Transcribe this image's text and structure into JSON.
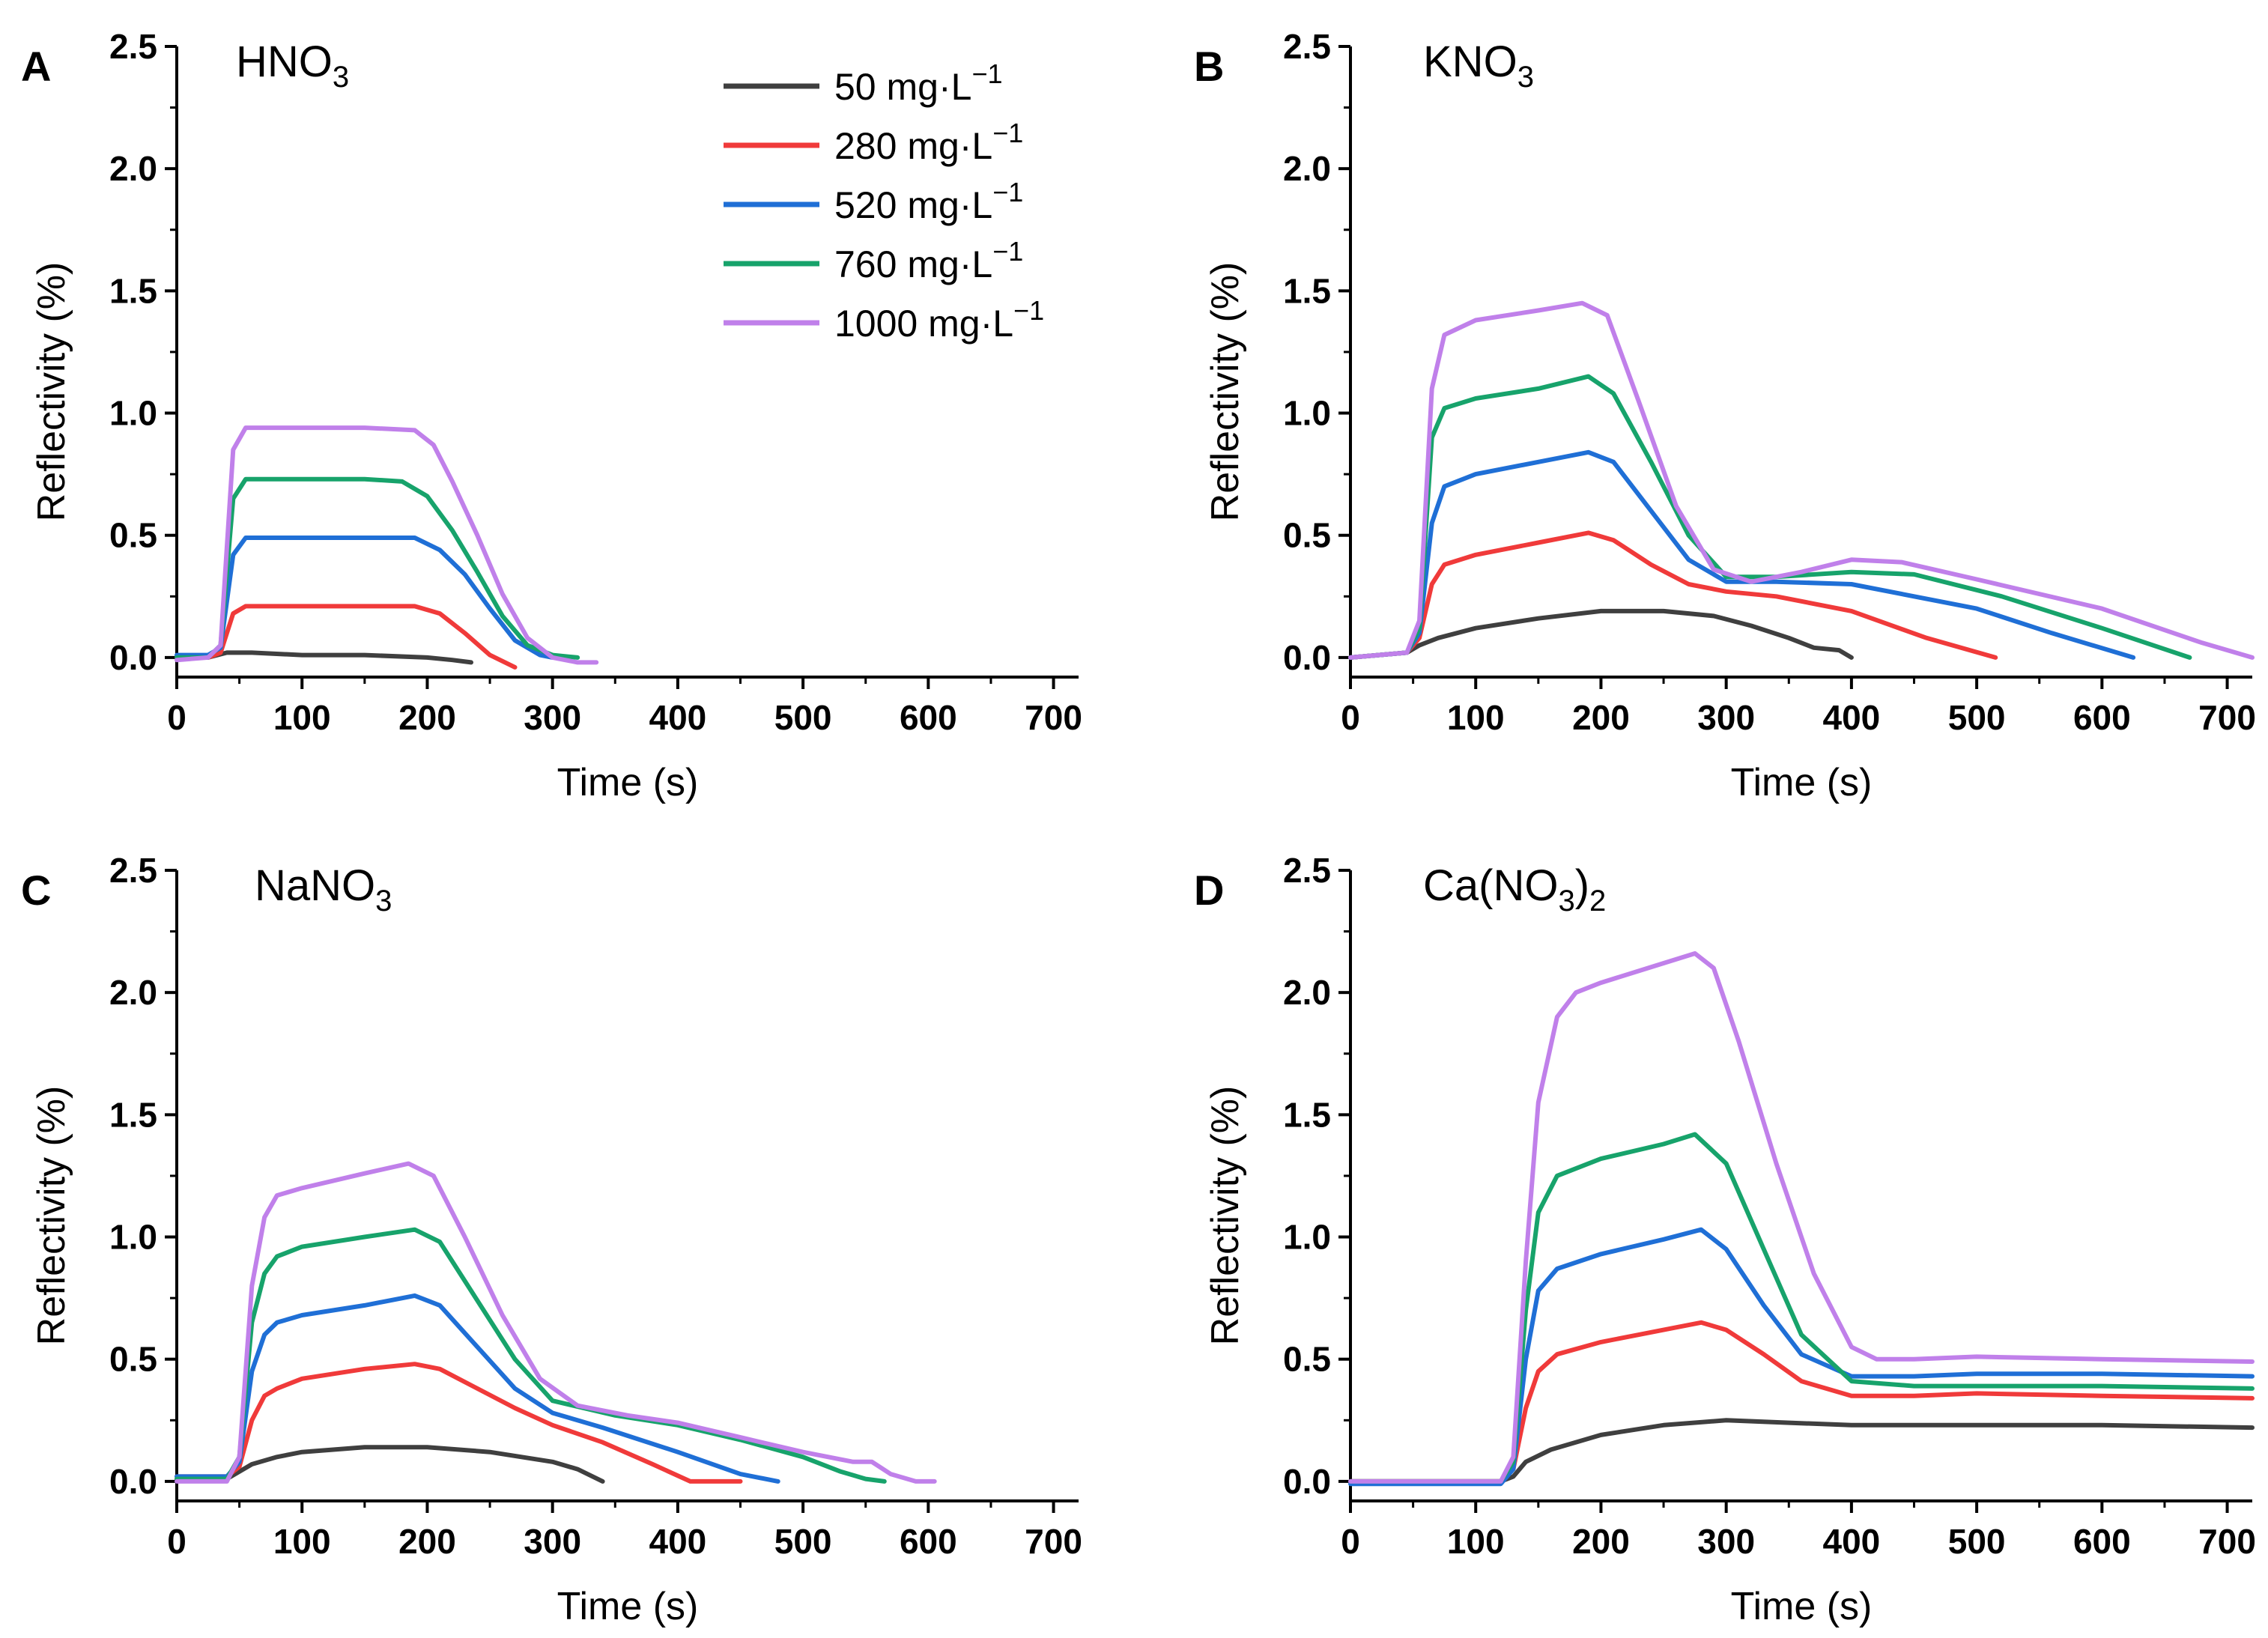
{
  "legend": {
    "entries": [
      {
        "label": "50 mg·L",
        "sup": "−1",
        "color": "#3f3f3f"
      },
      {
        "label": "280 mg·L",
        "sup": "−1",
        "color": "#f03a3a"
      },
      {
        "label": "520 mg·L",
        "sup": "−1",
        "color": "#1f6fd6"
      },
      {
        "label": "760 mg·L",
        "sup": "−1",
        "color": "#17a36b"
      },
      {
        "label": "1000 mg·L",
        "sup": "−1",
        "color": "#c080ea"
      }
    ]
  },
  "chart_data": [
    {
      "type": "line",
      "panel_label": "A",
      "title": {
        "main": "HNO",
        "sub": "3",
        "tail": ""
      },
      "xlabel": "Time (s)",
      "ylabel": "Reflectivity (%)",
      "xlim": [
        0,
        720
      ],
      "ylim": [
        -0.08,
        2.5
      ],
      "xticks": [
        "0",
        "100",
        "200",
        "300",
        "400",
        "500",
        "600",
        "700"
      ],
      "yticks": [
        "0.0",
        "0.5",
        "1.0",
        "1.5",
        "2.0",
        "2.5"
      ],
      "series": [
        {
          "name": "50 mg·L−1",
          "x": [
            0,
            25,
            40,
            60,
            100,
            150,
            200,
            220,
            235
          ],
          "y": [
            0,
            0,
            0.02,
            0.02,
            0.01,
            0.01,
            0.0,
            -0.01,
            -0.02
          ]
        },
        {
          "name": "280 mg·L−1",
          "x": [
            0,
            25,
            35,
            45,
            55,
            100,
            150,
            190,
            210,
            230,
            250,
            270
          ],
          "y": [
            0,
            0,
            0.02,
            0.18,
            0.21,
            0.21,
            0.21,
            0.21,
            0.18,
            0.1,
            0.01,
            -0.04
          ]
        },
        {
          "name": "520 mg·L−1",
          "x": [
            0,
            25,
            35,
            45,
            55,
            100,
            150,
            190,
            210,
            230,
            250,
            270,
            290,
            300
          ],
          "y": [
            0.01,
            0.01,
            0.04,
            0.42,
            0.49,
            0.49,
            0.49,
            0.49,
            0.44,
            0.34,
            0.2,
            0.07,
            0.01,
            0.0
          ]
        },
        {
          "name": "760 mg·L−1",
          "x": [
            0,
            25,
            35,
            45,
            55,
            100,
            150,
            180,
            200,
            220,
            240,
            260,
            280,
            300,
            320
          ],
          "y": [
            0,
            0,
            0.05,
            0.65,
            0.73,
            0.73,
            0.73,
            0.72,
            0.66,
            0.52,
            0.35,
            0.17,
            0.05,
            0.01,
            0.0
          ]
        },
        {
          "name": "1000 mg·L−1",
          "x": [
            0,
            25,
            35,
            45,
            55,
            100,
            150,
            190,
            205,
            220,
            240,
            260,
            280,
            300,
            320,
            335
          ],
          "y": [
            -0.01,
            0,
            0.05,
            0.85,
            0.94,
            0.94,
            0.94,
            0.93,
            0.87,
            0.72,
            0.5,
            0.26,
            0.08,
            0.0,
            -0.02,
            -0.02
          ]
        }
      ]
    },
    {
      "type": "line",
      "panel_label": "B",
      "title": {
        "main": "KNO",
        "sub": "3",
        "tail": ""
      },
      "xlabel": "Time (s)",
      "ylabel": "Reflectivity (%)",
      "xlim": [
        0,
        720
      ],
      "ylim": [
        -0.08,
        2.5
      ],
      "xticks": [
        "0",
        "100",
        "200",
        "300",
        "400",
        "500",
        "600",
        "700"
      ],
      "yticks": [
        "0.0",
        "0.5",
        "1.0",
        "1.5",
        "2.0",
        "2.5"
      ],
      "series": [
        {
          "name": "50 mg·L−1",
          "x": [
            0,
            45,
            55,
            70,
            100,
            150,
            200,
            250,
            290,
            320,
            350,
            370,
            390,
            400
          ],
          "y": [
            0,
            0.02,
            0.05,
            0.08,
            0.12,
            0.16,
            0.19,
            0.19,
            0.17,
            0.13,
            0.08,
            0.04,
            0.03,
            0.0
          ]
        },
        {
          "name": "280 mg·L−1",
          "x": [
            0,
            45,
            55,
            65,
            75,
            100,
            150,
            190,
            210,
            240,
            270,
            300,
            340,
            400,
            460,
            515
          ],
          "y": [
            0,
            0.02,
            0.08,
            0.3,
            0.38,
            0.42,
            0.47,
            0.51,
            0.48,
            0.38,
            0.3,
            0.27,
            0.25,
            0.19,
            0.08,
            0.0
          ]
        },
        {
          "name": "520 mg·L−1",
          "x": [
            0,
            45,
            55,
            65,
            75,
            100,
            150,
            190,
            210,
            240,
            270,
            300,
            340,
            400,
            500,
            560,
            625
          ],
          "y": [
            0,
            0.02,
            0.1,
            0.55,
            0.7,
            0.75,
            0.8,
            0.84,
            0.8,
            0.6,
            0.4,
            0.31,
            0.31,
            0.3,
            0.2,
            0.1,
            0.0
          ]
        },
        {
          "name": "760 mg·L−1",
          "x": [
            0,
            45,
            55,
            65,
            75,
            100,
            150,
            190,
            210,
            240,
            270,
            300,
            340,
            400,
            450,
            520,
            600,
            670
          ],
          "y": [
            0,
            0.02,
            0.12,
            0.9,
            1.02,
            1.06,
            1.1,
            1.15,
            1.08,
            0.8,
            0.5,
            0.33,
            0.33,
            0.35,
            0.34,
            0.25,
            0.12,
            0.0
          ]
        },
        {
          "name": "1000 mg·L−1",
          "x": [
            0,
            45,
            55,
            65,
            75,
            100,
            150,
            185,
            205,
            230,
            260,
            290,
            320,
            360,
            400,
            440,
            500,
            600,
            680,
            720
          ],
          "y": [
            0,
            0.02,
            0.15,
            1.1,
            1.32,
            1.38,
            1.42,
            1.45,
            1.4,
            1.05,
            0.62,
            0.36,
            0.31,
            0.35,
            0.4,
            0.39,
            0.32,
            0.2,
            0.06,
            0.0
          ]
        }
      ]
    },
    {
      "type": "line",
      "panel_label": "C",
      "title": {
        "main": "NaNO",
        "sub": "3",
        "tail": ""
      },
      "xlabel": "Time (s)",
      "ylabel": "Reflectivity (%)",
      "xlim": [
        0,
        720
      ],
      "ylim": [
        -0.08,
        2.5
      ],
      "xticks": [
        "0",
        "100",
        "200",
        "300",
        "400",
        "500",
        "600",
        "700"
      ],
      "yticks": [
        "0.0",
        "0.5",
        "1.0",
        "1.5",
        "2.0",
        "2.5"
      ],
      "series": [
        {
          "name": "50 mg·L−1",
          "x": [
            0,
            40,
            50,
            60,
            80,
            100,
            150,
            200,
            250,
            300,
            320,
            340
          ],
          "y": [
            0.01,
            0.01,
            0.04,
            0.07,
            0.1,
            0.12,
            0.14,
            0.14,
            0.12,
            0.08,
            0.05,
            0.0
          ]
        },
        {
          "name": "280 mg·L−1",
          "x": [
            0,
            40,
            50,
            60,
            70,
            80,
            100,
            150,
            190,
            210,
            240,
            270,
            300,
            340,
            380,
            410,
            420,
            450
          ],
          "y": [
            0.02,
            0.02,
            0.06,
            0.25,
            0.35,
            0.38,
            0.42,
            0.46,
            0.48,
            0.46,
            0.38,
            0.3,
            0.23,
            0.16,
            0.07,
            0.0,
            0.0,
            0.0
          ]
        },
        {
          "name": "520 mg·L−1",
          "x": [
            0,
            40,
            50,
            60,
            70,
            80,
            100,
            150,
            190,
            210,
            240,
            270,
            300,
            340,
            400,
            450,
            480
          ],
          "y": [
            0.02,
            0.02,
            0.08,
            0.45,
            0.6,
            0.65,
            0.68,
            0.72,
            0.76,
            0.72,
            0.55,
            0.38,
            0.28,
            0.22,
            0.12,
            0.03,
            0.0
          ]
        },
        {
          "name": "760 mg·L−1",
          "x": [
            0,
            40,
            50,
            60,
            70,
            80,
            100,
            150,
            190,
            210,
            240,
            270,
            300,
            350,
            400,
            450,
            500,
            530,
            550,
            565
          ],
          "y": [
            0.01,
            0.01,
            0.1,
            0.65,
            0.85,
            0.92,
            0.96,
            1.0,
            1.03,
            0.98,
            0.74,
            0.5,
            0.33,
            0.27,
            0.23,
            0.17,
            0.1,
            0.04,
            0.01,
            0.0
          ]
        },
        {
          "name": "1000 mg·L−1",
          "x": [
            0,
            40,
            50,
            60,
            70,
            80,
            100,
            150,
            185,
            205,
            230,
            260,
            290,
            320,
            360,
            400,
            450,
            500,
            540,
            555,
            570,
            590,
            605
          ],
          "y": [
            0,
            0,
            0.1,
            0.8,
            1.08,
            1.17,
            1.2,
            1.26,
            1.3,
            1.25,
            1.0,
            0.68,
            0.42,
            0.31,
            0.27,
            0.24,
            0.18,
            0.12,
            0.08,
            0.08,
            0.03,
            0.0,
            0.0
          ]
        }
      ]
    },
    {
      "type": "line",
      "panel_label": "D",
      "title": {
        "main": "Ca(NO",
        "sub": "3",
        "tail": ")",
        "sub2": "2"
      },
      "xlabel": "Time (s)",
      "ylabel": "Reflectivity (%)",
      "xlim": [
        0,
        720
      ],
      "ylim": [
        -0.08,
        2.5
      ],
      "xticks": [
        "0",
        "100",
        "200",
        "300",
        "400",
        "500",
        "600",
        "700"
      ],
      "yticks": [
        "0.0",
        "0.5",
        "1.0",
        "1.5",
        "2.0",
        "2.5"
      ],
      "series": [
        {
          "name": "50 mg·L−1",
          "x": [
            0,
            120,
            130,
            140,
            160,
            200,
            250,
            300,
            350,
            400,
            500,
            600,
            720
          ],
          "y": [
            0,
            0,
            0.02,
            0.08,
            0.13,
            0.19,
            0.23,
            0.25,
            0.24,
            0.23,
            0.23,
            0.23,
            0.22
          ]
        },
        {
          "name": "280 mg·L−1",
          "x": [
            0,
            120,
            130,
            140,
            150,
            165,
            200,
            250,
            280,
            300,
            330,
            360,
            400,
            450,
            500,
            600,
            720
          ],
          "y": [
            0,
            0,
            0.05,
            0.3,
            0.45,
            0.52,
            0.57,
            0.62,
            0.65,
            0.62,
            0.52,
            0.41,
            0.35,
            0.35,
            0.36,
            0.35,
            0.34
          ]
        },
        {
          "name": "520 mg·L−1",
          "x": [
            0,
            120,
            130,
            140,
            150,
            165,
            200,
            250,
            280,
            300,
            330,
            360,
            400,
            450,
            500,
            600,
            720
          ],
          "y": [
            -0.01,
            -0.01,
            0.05,
            0.5,
            0.78,
            0.87,
            0.93,
            0.99,
            1.03,
            0.95,
            0.72,
            0.52,
            0.43,
            0.43,
            0.44,
            0.44,
            0.43
          ]
        },
        {
          "name": "760 mg·L−1",
          "x": [
            0,
            120,
            130,
            140,
            150,
            165,
            200,
            250,
            275,
            300,
            330,
            360,
            400,
            450,
            500,
            600,
            720
          ],
          "y": [
            0,
            0,
            0.08,
            0.7,
            1.1,
            1.25,
            1.32,
            1.38,
            1.42,
            1.3,
            0.95,
            0.6,
            0.41,
            0.39,
            0.39,
            0.39,
            0.38
          ]
        },
        {
          "name": "1000 mg·L−1",
          "x": [
            0,
            120,
            130,
            140,
            150,
            165,
            180,
            200,
            250,
            275,
            290,
            310,
            340,
            370,
            400,
            420,
            450,
            500,
            600,
            720
          ],
          "y": [
            0,
            0,
            0.1,
            0.9,
            1.55,
            1.9,
            2.0,
            2.04,
            2.12,
            2.16,
            2.1,
            1.8,
            1.3,
            0.85,
            0.55,
            0.5,
            0.5,
            0.51,
            0.5,
            0.49
          ]
        }
      ]
    }
  ]
}
